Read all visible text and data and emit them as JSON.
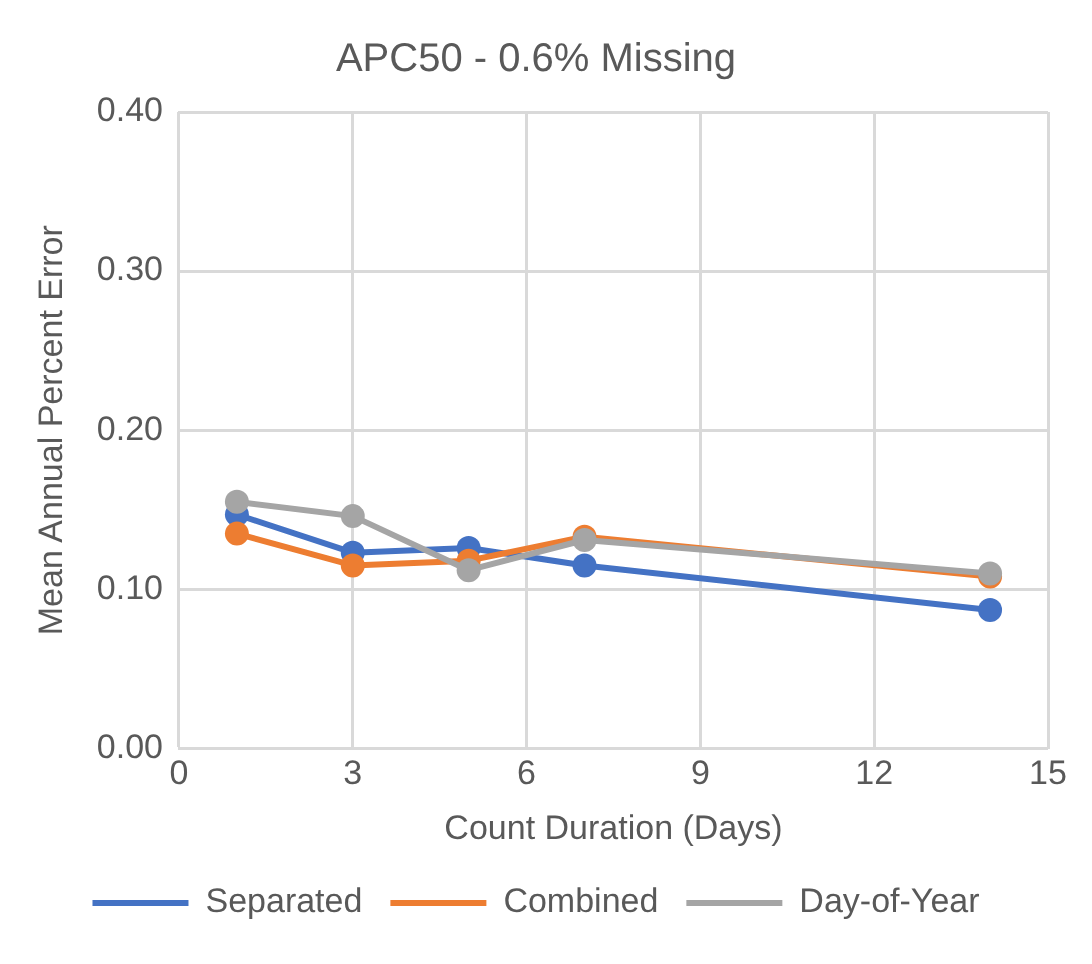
{
  "chart_data": {
    "type": "line",
    "title": "APC50 - 0.6% Missing",
    "xlabel": "Count Duration (Days)",
    "ylabel": "Mean Annual Percent Error",
    "x": [
      1,
      3,
      5,
      7,
      14
    ],
    "series": [
      {
        "name": "Separated",
        "color": "#4472c4",
        "values": [
          0.147,
          0.123,
          0.126,
          0.115,
          0.087
        ]
      },
      {
        "name": "Combined",
        "color": "#ed7d31",
        "values": [
          0.135,
          0.115,
          0.118,
          0.133,
          0.108
        ]
      },
      {
        "name": "Day-of-Year",
        "color": "#a5a5a5",
        "values": [
          0.155,
          0.146,
          0.112,
          0.131,
          0.11
        ]
      }
    ],
    "xlim": [
      0,
      15
    ],
    "xticks": [
      0,
      3,
      6,
      9,
      12,
      15
    ],
    "ylim": [
      0,
      0.4
    ],
    "yticks": [
      {
        "value": 0,
        "label": "0.00"
      },
      {
        "value": 0.1,
        "label": "0.10"
      },
      {
        "value": 0.2,
        "label": "0.20"
      },
      {
        "value": 0.3,
        "label": "0.30"
      },
      {
        "value": 0.4,
        "label": "0.40"
      }
    ],
    "grid": true,
    "legend": "bottom",
    "marker": "circle",
    "line_style": "solid"
  }
}
